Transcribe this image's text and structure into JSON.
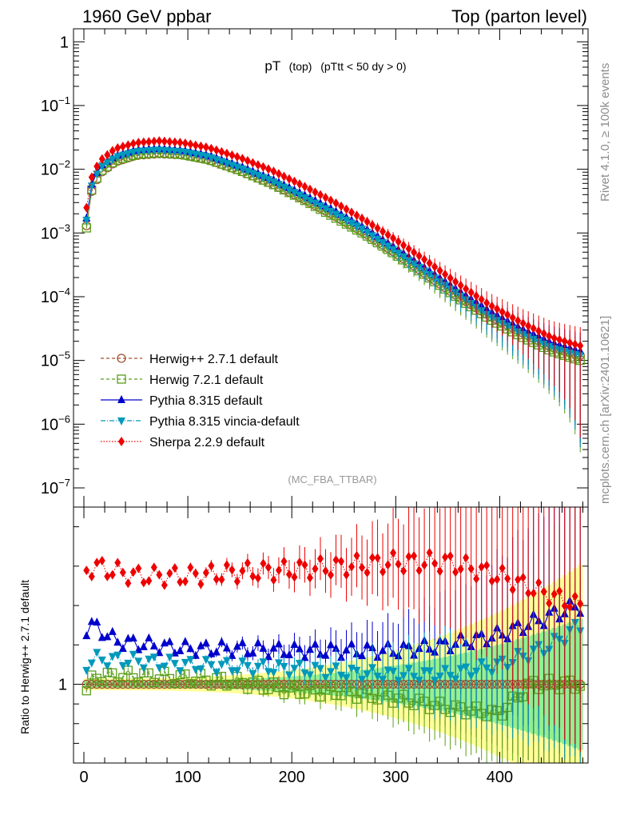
{
  "header": {
    "left": "1960 GeV ppbar",
    "right": "Top (parton level)",
    "side_info": "Rivet 4.1.0, ≥ 100k events",
    "side_url": "mcplots.cern.ch [arXiv:2401.10621]"
  },
  "chart_data": {
    "type": "line",
    "title": "pT",
    "title_sub1": "(top)",
    "title_sub2": "(pTtt < 50 dy > 0)",
    "analysis_label": "(MC_FBA_TTBAR)",
    "upper_panel": {
      "yscale": "log",
      "ylim": [
        5e-08,
        1.6
      ],
      "y_ticks": [
        {
          "value": 1,
          "mant": "1",
          "exp": ""
        },
        {
          "value": 0.1,
          "mant": "10",
          "exp": "−1"
        },
        {
          "value": 0.01,
          "mant": "10",
          "exp": "−2"
        },
        {
          "value": 0.001,
          "mant": "10",
          "exp": "−3"
        },
        {
          "value": 0.0001,
          "mant": "10",
          "exp": "−4"
        },
        {
          "value": 1e-05,
          "mant": "10",
          "exp": "−5"
        },
        {
          "value": 1e-06,
          "mant": "10",
          "exp": "−6"
        },
        {
          "value": 1e-07,
          "mant": "10",
          "exp": "−7"
        }
      ]
    },
    "ratio_panel": {
      "ylabel": "Ratio to Herwig++ 2.7.1 default",
      "ylim": [
        0.6,
        1.9
      ],
      "y_ticks": [
        {
          "value": 1,
          "label": "1"
        }
      ]
    },
    "xlim": [
      -10,
      485
    ],
    "x_ticks": [
      0,
      100,
      200,
      300,
      400
    ],
    "x_tick_labels": [
      "0",
      "100",
      "200",
      "300",
      "400"
    ],
    "bin_width": 5,
    "reference_series": "Herwig++ 2.7.1 default",
    "series": [
      {
        "name": "Herwig++ 2.7.1 default",
        "color": "#a0522d",
        "marker": "circle-open",
        "dash": "4,3",
        "nodes": [
          [
            2.5,
            0.0013
          ],
          [
            7.5,
            0.0045
          ],
          [
            15,
            0.0085
          ],
          [
            30,
            0.013
          ],
          [
            50,
            0.0165
          ],
          [
            72,
            0.0175
          ],
          [
            95,
            0.0168
          ],
          [
            120,
            0.014
          ],
          [
            150,
            0.0095
          ],
          [
            180,
            0.006
          ],
          [
            210,
            0.0035
          ],
          [
            240,
            0.0019
          ],
          [
            270,
            0.001
          ],
          [
            300,
            0.00048
          ],
          [
            330,
            0.00022
          ],
          [
            360,
            0.0001
          ],
          [
            390,
            5e-05
          ],
          [
            420,
            2.8e-05
          ],
          [
            450,
            1.6e-05
          ],
          [
            477,
            1.2e-05
          ]
        ],
        "ratio_nodes": [
          [
            2.5,
            1
          ],
          [
            477,
            1
          ]
        ]
      },
      {
        "name": "Herwig 7.2.1 default",
        "color": "#5a9e1a",
        "marker": "square-open",
        "dash": "4,3",
        "nodes": [
          [
            2.5,
            0.0012
          ],
          [
            7.5,
            0.0047
          ],
          [
            15,
            0.009
          ],
          [
            30,
            0.0135
          ],
          [
            50,
            0.017
          ],
          [
            72,
            0.018
          ],
          [
            95,
            0.017
          ],
          [
            120,
            0.0142
          ],
          [
            150,
            0.0096
          ],
          [
            180,
            0.006
          ],
          [
            210,
            0.0034
          ],
          [
            240,
            0.0018
          ],
          [
            270,
            0.00095
          ],
          [
            300,
            0.00046
          ],
          [
            330,
            0.00021
          ],
          [
            360,
            9.5e-05
          ],
          [
            390,
            4.5e-05
          ],
          [
            420,
            2.4e-05
          ],
          [
            450,
            1.4e-05
          ],
          [
            477,
            1e-05
          ]
        ],
        "ratio_nodes": [
          [
            2.5,
            0.97
          ],
          [
            10,
            1.04
          ],
          [
            50,
            1.04
          ],
          [
            100,
            1.03
          ],
          [
            150,
            1.01
          ],
          [
            200,
            0.97
          ],
          [
            250,
            0.96
          ],
          [
            300,
            0.93
          ],
          [
            350,
            0.88
          ],
          [
            400,
            0.85
          ],
          [
            430,
            1.0
          ],
          [
            477,
            1.0
          ]
        ]
      },
      {
        "name": "Pythia 8.315 default",
        "color": "#0000cc",
        "marker": "triangle-up",
        "dash": "",
        "nodes": [
          [
            2.5,
            0.0017
          ],
          [
            7.5,
            0.0058
          ],
          [
            15,
            0.011
          ],
          [
            30,
            0.016
          ],
          [
            50,
            0.02
          ],
          [
            72,
            0.021
          ],
          [
            95,
            0.0198
          ],
          [
            120,
            0.0165
          ],
          [
            150,
            0.0112
          ],
          [
            180,
            0.0071
          ],
          [
            210,
            0.0041
          ],
          [
            240,
            0.0023
          ],
          [
            270,
            0.0012
          ],
          [
            300,
            0.00058
          ],
          [
            330,
            0.00027
          ],
          [
            360,
            0.000125
          ],
          [
            390,
            6e-05
          ],
          [
            420,
            3.2e-05
          ],
          [
            450,
            1.9e-05
          ],
          [
            477,
            1.4e-05
          ]
        ],
        "ratio_nodes": [
          [
            2.5,
            1.28
          ],
          [
            10,
            1.3
          ],
          [
            30,
            1.22
          ],
          [
            60,
            1.2
          ],
          [
            100,
            1.18
          ],
          [
            150,
            1.18
          ],
          [
            200,
            1.17
          ],
          [
            250,
            1.17
          ],
          [
            300,
            1.17
          ],
          [
            350,
            1.2
          ],
          [
            400,
            1.25
          ],
          [
            450,
            1.35
          ],
          [
            477,
            1.4
          ]
        ]
      },
      {
        "name": "Pythia 8.315 vincia-default",
        "color": "#0099bb",
        "marker": "triangle-down",
        "dash": "6,2,1,2",
        "nodes": [
          [
            2.5,
            0.0016
          ],
          [
            7.5,
            0.0055
          ],
          [
            15,
            0.0105
          ],
          [
            30,
            0.0155
          ],
          [
            50,
            0.0192
          ],
          [
            72,
            0.0202
          ],
          [
            95,
            0.019
          ],
          [
            120,
            0.0158
          ],
          [
            150,
            0.0106
          ],
          [
            180,
            0.0067
          ],
          [
            210,
            0.0038
          ],
          [
            240,
            0.0021
          ],
          [
            270,
            0.0011
          ],
          [
            300,
            0.00052
          ],
          [
            330,
            0.00024
          ],
          [
            360,
            0.00011
          ],
          [
            390,
            5e-05
          ],
          [
            420,
            2.7e-05
          ],
          [
            450,
            1.6e-05
          ],
          [
            477,
            1.2e-05
          ]
        ],
        "ratio_nodes": [
          [
            2.5,
            1.1
          ],
          [
            10,
            1.13
          ],
          [
            50,
            1.12
          ],
          [
            100,
            1.1
          ],
          [
            150,
            1.09
          ],
          [
            200,
            1.08
          ],
          [
            250,
            1.06
          ],
          [
            300,
            1.05
          ],
          [
            350,
            1.05
          ],
          [
            400,
            1.1
          ],
          [
            450,
            1.2
          ],
          [
            477,
            1.3
          ]
        ]
      },
      {
        "name": "Sherpa 2.2.9 default",
        "color": "#ee0000",
        "marker": "diamond",
        "dash": "1.5,2",
        "nodes": [
          [
            2.5,
            0.0025
          ],
          [
            7.5,
            0.0075
          ],
          [
            15,
            0.0135
          ],
          [
            30,
            0.021
          ],
          [
            50,
            0.026
          ],
          [
            72,
            0.0278
          ],
          [
            95,
            0.026
          ],
          [
            120,
            0.0218
          ],
          [
            150,
            0.0152
          ],
          [
            180,
            0.0097
          ],
          [
            210,
            0.0056
          ],
          [
            240,
            0.0031
          ],
          [
            270,
            0.0016
          ],
          [
            300,
            0.00078
          ],
          [
            330,
            0.00036
          ],
          [
            360,
            0.00016
          ],
          [
            390,
            7.5e-05
          ],
          [
            420,
            4e-05
          ],
          [
            450,
            2.3e-05
          ],
          [
            477,
            1.7e-05
          ]
        ],
        "ratio_nodes": [
          [
            2.5,
            1.58
          ],
          [
            10,
            1.6
          ],
          [
            50,
            1.55
          ],
          [
            100,
            1.55
          ],
          [
            150,
            1.57
          ],
          [
            200,
            1.58
          ],
          [
            250,
            1.6
          ],
          [
            300,
            1.62
          ],
          [
            350,
            1.62
          ],
          [
            400,
            1.55
          ],
          [
            450,
            1.45
          ],
          [
            477,
            1.4
          ]
        ]
      }
    ]
  }
}
